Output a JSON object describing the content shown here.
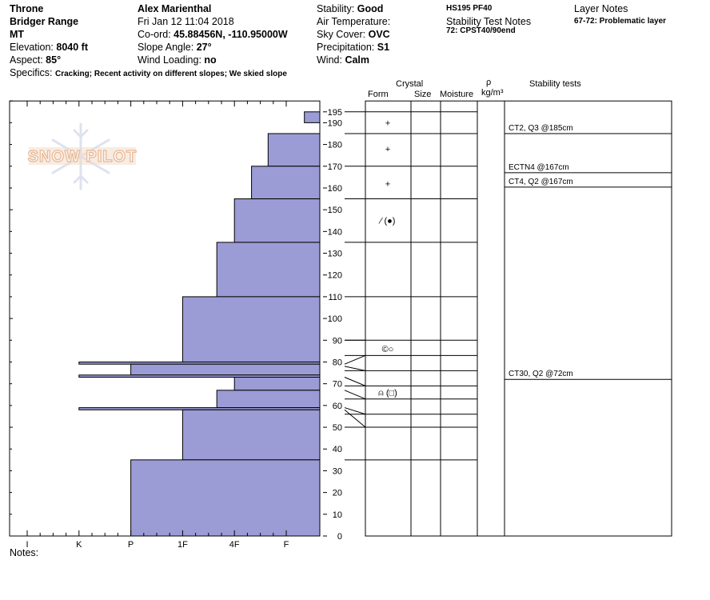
{
  "header": {
    "location": "Throne",
    "range": "Bridger Range",
    "state": "MT",
    "elevation_label": "Elevation:",
    "elevation_value": "8040 ft",
    "aspect_label": "Aspect:",
    "aspect_value": "85°",
    "observer": "Alex Marienthal",
    "datetime": "Fri Jan 12 11:04 2018",
    "coord_label": "Co-ord:",
    "coord_value": "45.88456N, -110.95000W",
    "slope_label": "Slope Angle:",
    "slope_value": "27°",
    "wind_loading_label": "Wind Loading:",
    "wind_loading_value": "no",
    "stability_label": "Stability:",
    "stability_value": "Good",
    "air_temp_label": "Air Temperature:",
    "sky_label": "Sky Cover:",
    "sky_value": "OVC",
    "precip_label": "Precipitation:",
    "precip_value": "S1",
    "wind_label": "Wind:",
    "wind_value": "Calm",
    "hs_pf": "HS195 PF40",
    "stability_notes_label": "Stability Test Notes",
    "stability_note_1": "72: CPST40/90end",
    "layer_notes_label": "Layer Notes",
    "layer_note_1": "67-72: Problematic layer",
    "specifics_label": "Specifics:",
    "specifics_value": "Cracking; Recent activity on different slopes; We skied slope",
    "notes_label": "Notes:"
  },
  "logo": {
    "text": "SNOW PILOT"
  },
  "columns": {
    "crystal": "Crystal",
    "form": "Form",
    "size": "Size",
    "moisture": "Moisture",
    "rho": "ρ",
    "density_unit": "kg/m³",
    "stability_tests": "Stability tests"
  },
  "colors": {
    "fill": "#9b9bd5",
    "stroke": "#000000",
    "logo": "#e8b894"
  },
  "chart_data": {
    "type": "bar",
    "orientation": "horizontal",
    "title": "",
    "ylabel": "",
    "ylim": [
      0,
      200
    ],
    "y_ticks": [
      0,
      10,
      20,
      30,
      40,
      50,
      60,
      70,
      80,
      90,
      100,
      110,
      120,
      130,
      140,
      150,
      160,
      170,
      180,
      190,
      195
    ],
    "x_categories": [
      "I",
      "K",
      "P",
      "1F",
      "4F",
      "F"
    ],
    "hardness_scale": {
      "I": 0,
      "K": 1,
      "P": 2,
      "1F": 3,
      "4F": 4,
      "F": 5
    },
    "layers": [
      {
        "top": 195,
        "bottom": 190,
        "hardness": 5.35
      },
      {
        "top": 185,
        "bottom": 170,
        "hardness": 4.65
      },
      {
        "top": 170,
        "bottom": 155,
        "hardness": 4.33
      },
      {
        "top": 155,
        "bottom": 135,
        "hardness": 4.0
      },
      {
        "top": 135,
        "bottom": 110,
        "hardness": 3.66
      },
      {
        "top": 110,
        "bottom": 80,
        "hardness": 3.0
      },
      {
        "top": 80,
        "bottom": 79,
        "hardness": 1.0
      },
      {
        "top": 79,
        "bottom": 74,
        "hardness": 2.0
      },
      {
        "top": 74,
        "bottom": 73,
        "hardness": 1.0
      },
      {
        "top": 73,
        "bottom": 67,
        "hardness": 4.0
      },
      {
        "top": 67,
        "bottom": 59,
        "hardness": 3.66
      },
      {
        "top": 59,
        "bottom": 58,
        "hardness": 1.0
      },
      {
        "top": 58,
        "bottom": 35,
        "hardness": 3.0
      },
      {
        "top": 35,
        "bottom": 0,
        "hardness": 2.0
      }
    ],
    "layer_boundaries": [
      195,
      185,
      170,
      155,
      135,
      110,
      90,
      83,
      76,
      69,
      63,
      56,
      50,
      35
    ],
    "connectors": [
      {
        "left": 90,
        "right": 90
      },
      {
        "left": 79,
        "right": 83
      },
      {
        "left": 78,
        "right": 76
      },
      {
        "left": 73,
        "right": 69
      },
      {
        "left": 67,
        "right": 63
      },
      {
        "left": 59,
        "right": 56
      },
      {
        "left": 58,
        "right": 50
      }
    ],
    "crystal_forms": [
      {
        "depth": 190,
        "symbol": "+"
      },
      {
        "depth": 178,
        "symbol": "+"
      },
      {
        "depth": 162,
        "symbol": "+"
      },
      {
        "depth": 145,
        "symbol": "⁄ (●)"
      },
      {
        "depth": 86,
        "symbol": "©○"
      },
      {
        "depth": 66,
        "symbol": "⍝ (□)"
      }
    ],
    "stability_tests": [
      {
        "depth": 185,
        "label": "CT2, Q3 @185cm"
      },
      {
        "depth": 167,
        "label": "ECTN4 @167cm"
      },
      {
        "depth": 167,
        "label": "CT4, Q2 @167cm"
      },
      {
        "depth": 72,
        "label": "CT30, Q2 @72cm"
      }
    ]
  }
}
